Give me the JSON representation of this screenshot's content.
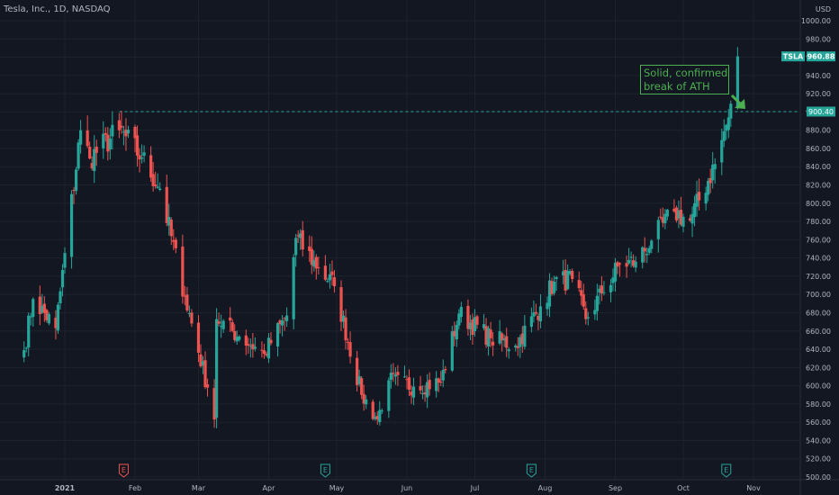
{
  "header": {
    "symbol_line": "Tesla, Inc., 1D, NASDAQ"
  },
  "currency": "USD",
  "colors": {
    "background": "#131722",
    "grid": "#1e222d",
    "up": "#26a69a",
    "down": "#ef5350",
    "text": "#b2b5be",
    "annotation": "#4caf50",
    "level": "#26a69a"
  },
  "annotation": {
    "lines": [
      "Solid, confirmed",
      "break of ATH"
    ]
  },
  "events": {
    "label": "E",
    "dates": [
      {
        "date": "2021-01-27",
        "color": "#ef5350"
      },
      {
        "date": "2021-04-26",
        "color": "#26a69a"
      },
      {
        "date": "2021-07-26",
        "color": "#26a69a"
      },
      {
        "date": "2021-10-20",
        "color": "#26a69a"
      }
    ]
  },
  "chart_data": {
    "type": "candlestick",
    "ylim": [
      500,
      1000
    ],
    "yticks": [
      500,
      520,
      540,
      560,
      580,
      600,
      620,
      640,
      660,
      680,
      700,
      720,
      740,
      760,
      780,
      800,
      820,
      840,
      860,
      880,
      900,
      920,
      940,
      960,
      980,
      1000
    ],
    "ytick_labels": [
      "500.00",
      "520.00",
      "540.00",
      "560.00",
      "580.00",
      "600.00",
      "620.00",
      "640.00",
      "660.00",
      "680.00",
      "700.00",
      "720.00",
      "740.00",
      "760.00",
      "780.00",
      "800.00",
      "820.00",
      "840.00",
      "860.00",
      "880.00",
      "900.00",
      "920.00",
      "940.00",
      "960.00",
      "980.00",
      "1000.00"
    ],
    "xlim": [
      "2020-12-14",
      "2021-11-15"
    ],
    "xticks": [
      {
        "date": "2021-01-01",
        "label": "2021",
        "bold": true
      },
      {
        "date": "2021-02-01",
        "label": "Feb"
      },
      {
        "date": "2021-03-01",
        "label": "Mar"
      },
      {
        "date": "2021-04-01",
        "label": "Apr"
      },
      {
        "date": "2021-05-01",
        "label": "May"
      },
      {
        "date": "2021-06-01",
        "label": "Jun"
      },
      {
        "date": "2021-07-01",
        "label": "Jul"
      },
      {
        "date": "2021-08-01",
        "label": "Aug"
      },
      {
        "date": "2021-09-01",
        "label": "Sep"
      },
      {
        "date": "2021-10-01",
        "label": "Oct"
      },
      {
        "date": "2021-11-01",
        "label": "Nov"
      }
    ],
    "level_line": {
      "value": 900.4,
      "label": "900.40",
      "from": "2021-01-25"
    },
    "last_price": {
      "symbol": "TSLA",
      "value": 960.88,
      "label": "960.88"
    },
    "anchors": [
      {
        "date": "2020-12-14",
        "close": 639
      },
      {
        "date": "2020-12-18",
        "close": 695
      },
      {
        "date": "2020-12-28",
        "close": 663
      },
      {
        "date": "2021-01-08",
        "close": 880
      },
      {
        "date": "2021-01-12",
        "close": 849
      },
      {
        "date": "2021-01-25",
        "close": 880
      },
      {
        "date": "2021-02-04",
        "close": 850
      },
      {
        "date": "2021-02-12",
        "close": 816
      },
      {
        "date": "2021-02-23",
        "close": 698
      },
      {
        "date": "2021-03-05",
        "close": 598
      },
      {
        "date": "2021-03-08",
        "close": 563
      },
      {
        "date": "2021-03-09",
        "close": 673
      },
      {
        "date": "2021-03-19",
        "close": 654
      },
      {
        "date": "2021-03-30",
        "close": 635
      },
      {
        "date": "2021-04-09",
        "close": 677
      },
      {
        "date": "2021-04-13",
        "close": 762
      },
      {
        "date": "2021-04-23",
        "close": 729
      },
      {
        "date": "2021-04-30",
        "close": 709
      },
      {
        "date": "2021-05-12",
        "close": 590
      },
      {
        "date": "2021-05-19",
        "close": 563
      },
      {
        "date": "2021-05-24",
        "close": 606
      },
      {
        "date": "2021-06-04",
        "close": 599
      },
      {
        "date": "2021-06-16",
        "close": 604
      },
      {
        "date": "2021-06-24",
        "close": 679
      },
      {
        "date": "2021-07-08",
        "close": 652
      },
      {
        "date": "2021-07-19",
        "close": 644
      },
      {
        "date": "2021-07-30",
        "close": 687
      },
      {
        "date": "2021-08-05",
        "close": 714
      },
      {
        "date": "2021-08-13",
        "close": 717
      },
      {
        "date": "2021-08-19",
        "close": 673
      },
      {
        "date": "2021-08-26",
        "close": 701
      },
      {
        "date": "2021-09-03",
        "close": 733
      },
      {
        "date": "2021-09-10",
        "close": 736
      },
      {
        "date": "2021-09-17",
        "close": 759
      },
      {
        "date": "2021-09-27",
        "close": 791
      },
      {
        "date": "2021-10-04",
        "close": 781
      },
      {
        "date": "2021-10-15",
        "close": 843
      },
      {
        "date": "2021-10-21",
        "close": 894
      },
      {
        "date": "2021-10-22",
        "close": 909
      },
      {
        "date": "2021-10-25",
        "close": 960.88
      }
    ]
  }
}
